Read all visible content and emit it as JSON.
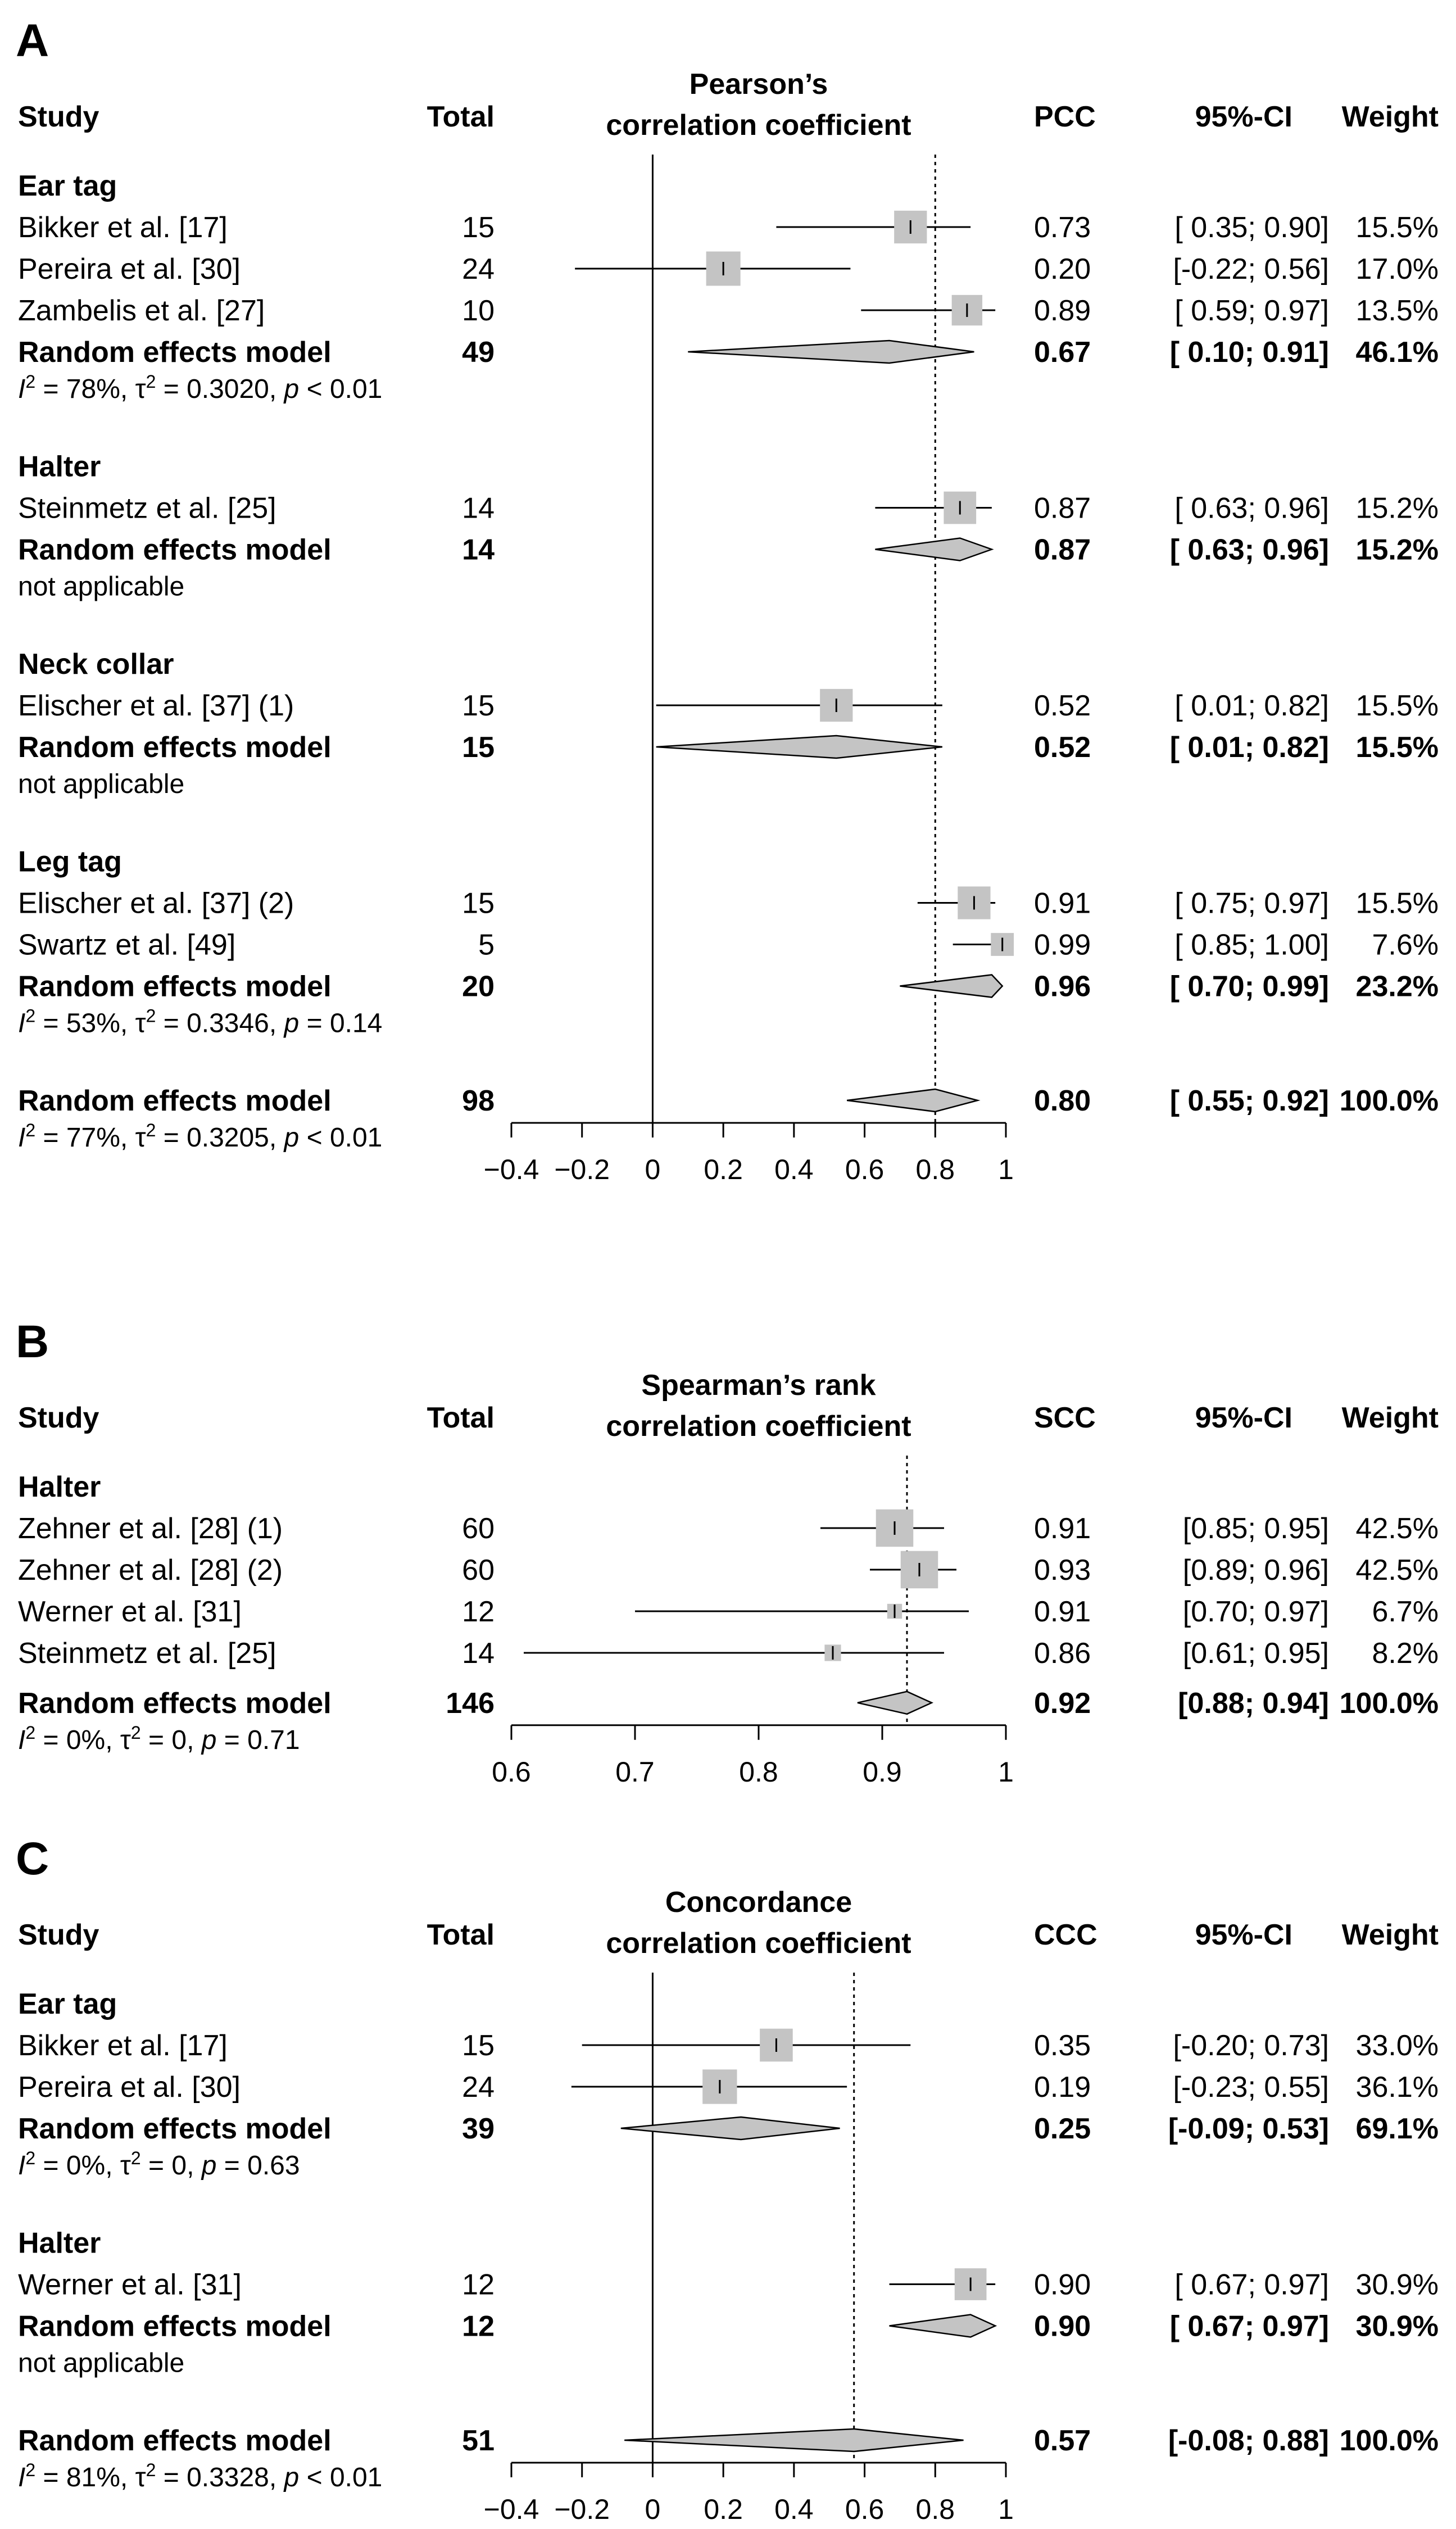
{
  "figure": {
    "panels": [
      {
        "letter": "A",
        "header": {
          "study": "Study",
          "total": "Total",
          "plot_title_1": "Pearson’s",
          "plot_title_2": "correlation coefficient",
          "est": "PCC",
          "ci": "95%-CI",
          "weight": "Weight"
        },
        "axis": {
          "min": -0.4,
          "max": 1,
          "ticks": [
            -0.4,
            -0.2,
            0,
            0.2,
            0.4,
            0.6,
            0.8,
            1
          ],
          "tick_labels": [
            "−0.4",
            "−0.2",
            "0",
            "0.2",
            "0.4",
            "0.6",
            "0.8",
            "1"
          ],
          "reference_line": 0,
          "overall_line": 0.8
        },
        "groups": [
          {
            "name": "Ear tag",
            "studies": [
              {
                "name": "Bikker et al. [17]",
                "total": "15",
                "est": 0.73,
                "lo": 0.35,
                "hi": 0.9,
                "est_txt": "0.73",
                "ci_txt": "[ 0.35; 0.90]",
                "w": 15.5,
                "w_txt": "15.5%"
              },
              {
                "name": "Pereira et al. [30]",
                "total": "24",
                "est": 0.2,
                "lo": -0.22,
                "hi": 0.56,
                "est_txt": "0.20",
                "ci_txt": "[-0.22; 0.56]",
                "w": 17.0,
                "w_txt": "17.0%"
              },
              {
                "name": "Zambelis et al. [27]",
                "total": "10",
                "est": 0.89,
                "lo": 0.59,
                "hi": 0.97,
                "est_txt": "0.89",
                "ci_txt": "[ 0.59; 0.97]",
                "w": 13.5,
                "w_txt": "13.5%"
              }
            ],
            "summary": {
              "label": "Random effects model",
              "total": "49",
              "est": 0.67,
              "lo": 0.1,
              "hi": 0.91,
              "est_txt": "0.67",
              "ci_txt": "[ 0.10; 0.91]",
              "w_txt": "46.1%"
            },
            "het": {
              "i2": "78%",
              "tau2": "0.3020",
              "p": "< 0.01",
              "na": ""
            }
          },
          {
            "name": "Halter",
            "studies": [
              {
                "name": "Steinmetz et al. [25]",
                "total": "14",
                "est": 0.87,
                "lo": 0.63,
                "hi": 0.96,
                "est_txt": "0.87",
                "ci_txt": "[ 0.63; 0.96]",
                "w": 15.2,
                "w_txt": "15.2%"
              }
            ],
            "summary": {
              "label": "Random effects model",
              "total": "14",
              "est": 0.87,
              "lo": 0.63,
              "hi": 0.96,
              "est_txt": "0.87",
              "ci_txt": "[ 0.63; 0.96]",
              "w_txt": "15.2%"
            },
            "het": {
              "i2": "",
              "tau2": "",
              "p": "",
              "na": "not applicable"
            }
          },
          {
            "name": "Neck collar",
            "studies": [
              {
                "name": "Elischer et al. [37] (1)",
                "total": "15",
                "est": 0.52,
                "lo": 0.01,
                "hi": 0.82,
                "est_txt": "0.52",
                "ci_txt": "[ 0.01; 0.82]",
                "w": 15.5,
                "w_txt": "15.5%"
              }
            ],
            "summary": {
              "label": "Random effects model",
              "total": "15",
              "est": 0.52,
              "lo": 0.01,
              "hi": 0.82,
              "est_txt": "0.52",
              "ci_txt": "[ 0.01; 0.82]",
              "w_txt": "15.5%"
            },
            "het": {
              "i2": "",
              "tau2": "",
              "p": "",
              "na": "not applicable"
            }
          },
          {
            "name": "Leg tag",
            "studies": [
              {
                "name": "Elischer et al. [37] (2)",
                "total": "15",
                "est": 0.91,
                "lo": 0.75,
                "hi": 0.97,
                "est_txt": "0.91",
                "ci_txt": "[ 0.75; 0.97]",
                "w": 15.5,
                "w_txt": "15.5%"
              },
              {
                "name": "Swartz et al. [49]",
                "total": "5",
                "est": 0.99,
                "lo": 0.85,
                "hi": 1.0,
                "est_txt": "0.99",
                "ci_txt": "[ 0.85; 1.00]",
                "w": 7.6,
                "w_txt": "7.6%"
              }
            ],
            "summary": {
              "label": "Random effects model",
              "total": "20",
              "est": 0.96,
              "lo": 0.7,
              "hi": 0.99,
              "est_txt": "0.96",
              "ci_txt": "[ 0.70; 0.99]",
              "w_txt": "23.2%"
            },
            "het": {
              "i2": "53%",
              "tau2": "0.3346",
              "p": "= 0.14",
              "na": ""
            }
          }
        ],
        "overall": {
          "label": "Random effects model",
          "total": "98",
          "est": 0.8,
          "lo": 0.55,
          "hi": 0.92,
          "est_txt": "0.80",
          "ci_txt": "[ 0.55; 0.92]",
          "w_txt": "100.0%"
        },
        "overall_het": {
          "i2": "77%",
          "tau2": "0.3205",
          "p": "< 0.01",
          "na": ""
        }
      },
      {
        "letter": "B",
        "header": {
          "study": "Study",
          "total": "Total",
          "plot_title_1": "Spearman’s rank",
          "plot_title_2": "correlation coefficient",
          "est": "SCC",
          "ci": "95%-CI",
          "weight": "Weight"
        },
        "axis": {
          "min": 0.6,
          "max": 1,
          "ticks": [
            0.6,
            0.7,
            0.8,
            0.9,
            1
          ],
          "tick_labels": [
            "0.6",
            "0.7",
            "0.8",
            "0.9",
            "1"
          ],
          "reference_line": null,
          "overall_line": 0.92
        },
        "groups": [
          {
            "name": "Halter",
            "studies": [
              {
                "name": "Zehner et al. [28] (1)",
                "total": "60",
                "est": 0.91,
                "lo": 0.85,
                "hi": 0.95,
                "est_txt": "0.91",
                "ci_txt": "[0.85; 0.95]",
                "w": 42.5,
                "w_txt": "42.5%"
              },
              {
                "name": "Zehner et al. [28] (2)",
                "total": "60",
                "est": 0.93,
                "lo": 0.89,
                "hi": 0.96,
                "est_txt": "0.93",
                "ci_txt": "[0.89; 0.96]",
                "w": 42.5,
                "w_txt": "42.5%"
              },
              {
                "name": "Werner et al. [31]",
                "total": "12",
                "est": 0.91,
                "lo": 0.7,
                "hi": 0.97,
                "est_txt": "0.91",
                "ci_txt": "[0.70; 0.97]",
                "w": 6.7,
                "w_txt": "6.7%"
              },
              {
                "name": "Steinmetz et al. [25]",
                "total": "14",
                "est": 0.86,
                "lo": 0.61,
                "hi": 0.95,
                "est_txt": "0.86",
                "ci_txt": "[0.61; 0.95]",
                "w": 8.2,
                "w_txt": "8.2%"
              }
            ],
            "summary": null,
            "het": null
          }
        ],
        "overall": {
          "label": "Random effects model",
          "total": "146",
          "est": 0.92,
          "lo": 0.88,
          "hi": 0.94,
          "est_txt": "0.92",
          "ci_txt": "[0.88; 0.94]",
          "w_txt": "100.0%"
        },
        "overall_het": {
          "i2": "0%",
          "tau2": "0",
          "p": "= 0.71",
          "na": ""
        }
      },
      {
        "letter": "C",
        "header": {
          "study": "Study",
          "total": "Total",
          "plot_title_1": "Concordance",
          "plot_title_2": "correlation coefficient",
          "est": "CCC",
          "ci": "95%-CI",
          "weight": "Weight"
        },
        "axis": {
          "min": -0.4,
          "max": 1,
          "ticks": [
            -0.4,
            -0.2,
            0,
            0.2,
            0.4,
            0.6,
            0.8,
            1
          ],
          "tick_labels": [
            "−0.4",
            "−0.2",
            "0",
            "0.2",
            "0.4",
            "0.6",
            "0.8",
            "1"
          ],
          "reference_line": 0,
          "overall_line": 0.57
        },
        "groups": [
          {
            "name": "Ear tag",
            "studies": [
              {
                "name": "Bikker et al. [17]",
                "total": "15",
                "est": 0.35,
                "lo": -0.2,
                "hi": 0.73,
                "est_txt": "0.35",
                "ci_txt": "[-0.20; 0.73]",
                "w": 33.0,
                "w_txt": "33.0%"
              },
              {
                "name": "Pereira et al. [30]",
                "total": "24",
                "est": 0.19,
                "lo": -0.23,
                "hi": 0.55,
                "est_txt": "0.19",
                "ci_txt": "[-0.23; 0.55]",
                "w": 36.1,
                "w_txt": "36.1%"
              }
            ],
            "summary": {
              "label": "Random effects model",
              "total": "39",
              "est": 0.25,
              "lo": -0.09,
              "hi": 0.53,
              "est_txt": "0.25",
              "ci_txt": "[-0.09; 0.53]",
              "w_txt": "69.1%"
            },
            "het": {
              "i2": "0%",
              "tau2": "0",
              "p": "= 0.63",
              "na": ""
            }
          },
          {
            "name": "Halter",
            "studies": [
              {
                "name": "Werner et al. [31]",
                "total": "12",
                "est": 0.9,
                "lo": 0.67,
                "hi": 0.97,
                "est_txt": "0.90",
                "ci_txt": "[ 0.67; 0.97]",
                "w": 30.9,
                "w_txt": "30.9%"
              }
            ],
            "summary": {
              "label": "Random effects model",
              "total": "12",
              "est": 0.9,
              "lo": 0.67,
              "hi": 0.97,
              "est_txt": "0.90",
              "ci_txt": "[ 0.67; 0.97]",
              "w_txt": "30.9%"
            },
            "het": {
              "i2": "",
              "tau2": "",
              "p": "",
              "na": "not applicable"
            }
          }
        ],
        "overall": {
          "label": "Random effects model",
          "total": "51",
          "est": 0.57,
          "lo": -0.08,
          "hi": 0.88,
          "est_txt": "0.57",
          "ci_txt": "[-0.08; 0.88]",
          "w_txt": "100.0%"
        },
        "overall_het": {
          "i2": "81%",
          "tau2": "0.3328",
          "p": "< 0.01",
          "na": ""
        }
      }
    ]
  },
  "chart_data": [
    {
      "type": "forest",
      "title": "A — Pearson’s correlation coefficient (PCC)",
      "xlim": [
        -0.4,
        1
      ],
      "series": [
        {
          "group": "Ear tag",
          "study": "Bikker et al. [17]",
          "n": 15,
          "est": 0.73,
          "ci": [
            0.35,
            0.9
          ],
          "weight_pct": 15.5
        },
        {
          "group": "Ear tag",
          "study": "Pereira et al. [30]",
          "n": 24,
          "est": 0.2,
          "ci": [
            -0.22,
            0.56
          ],
          "weight_pct": 17.0
        },
        {
          "group": "Ear tag",
          "study": "Zambelis et al. [27]",
          "n": 10,
          "est": 0.89,
          "ci": [
            0.59,
            0.97
          ],
          "weight_pct": 13.5
        },
        {
          "group": "Ear tag",
          "study": "Random effects model",
          "n": 49,
          "est": 0.67,
          "ci": [
            0.1,
            0.91
          ],
          "weight_pct": 46.1
        },
        {
          "group": "Halter",
          "study": "Steinmetz et al. [25]",
          "n": 14,
          "est": 0.87,
          "ci": [
            0.63,
            0.96
          ],
          "weight_pct": 15.2
        },
        {
          "group": "Neck collar",
          "study": "Elischer et al. [37] (1)",
          "n": 15,
          "est": 0.52,
          "ci": [
            0.01,
            0.82
          ],
          "weight_pct": 15.5
        },
        {
          "group": "Leg tag",
          "study": "Elischer et al. [37] (2)",
          "n": 15,
          "est": 0.91,
          "ci": [
            0.75,
            0.97
          ],
          "weight_pct": 15.5
        },
        {
          "group": "Leg tag",
          "study": "Swartz et al. [49]",
          "n": 5,
          "est": 0.99,
          "ci": [
            0.85,
            1.0
          ],
          "weight_pct": 7.6
        },
        {
          "group": "Leg tag",
          "study": "Random effects model",
          "n": 20,
          "est": 0.96,
          "ci": [
            0.7,
            0.99
          ],
          "weight_pct": 23.2
        },
        {
          "group": "Overall",
          "study": "Random effects model",
          "n": 98,
          "est": 0.8,
          "ci": [
            0.55,
            0.92
          ],
          "weight_pct": 100.0
        }
      ]
    },
    {
      "type": "forest",
      "title": "B — Spearman’s rank correlation coefficient (SCC)",
      "xlim": [
        0.6,
        1
      ],
      "series": [
        {
          "group": "Halter",
          "study": "Zehner et al. [28] (1)",
          "n": 60,
          "est": 0.91,
          "ci": [
            0.85,
            0.95
          ],
          "weight_pct": 42.5
        },
        {
          "group": "Halter",
          "study": "Zehner et al. [28] (2)",
          "n": 60,
          "est": 0.93,
          "ci": [
            0.89,
            0.96
          ],
          "weight_pct": 42.5
        },
        {
          "group": "Halter",
          "study": "Werner et al. [31]",
          "n": 12,
          "est": 0.91,
          "ci": [
            0.7,
            0.97
          ],
          "weight_pct": 6.7
        },
        {
          "group": "Halter",
          "study": "Steinmetz et al. [25]",
          "n": 14,
          "est": 0.86,
          "ci": [
            0.61,
            0.95
          ],
          "weight_pct": 8.2
        },
        {
          "group": "Overall",
          "study": "Random effects model",
          "n": 146,
          "est": 0.92,
          "ci": [
            0.88,
            0.94
          ],
          "weight_pct": 100.0
        }
      ]
    },
    {
      "type": "forest",
      "title": "C — Concordance correlation coefficient (CCC)",
      "xlim": [
        -0.4,
        1
      ],
      "series": [
        {
          "group": "Ear tag",
          "study": "Bikker et al. [17]",
          "n": 15,
          "est": 0.35,
          "ci": [
            -0.2,
            0.73
          ],
          "weight_pct": 33.0
        },
        {
          "group": "Ear tag",
          "study": "Pereira et al. [30]",
          "n": 24,
          "est": 0.19,
          "ci": [
            -0.23,
            0.55
          ],
          "weight_pct": 36.1
        },
        {
          "group": "Ear tag",
          "study": "Random effects model",
          "n": 39,
          "est": 0.25,
          "ci": [
            -0.09,
            0.53
          ],
          "weight_pct": 69.1
        },
        {
          "group": "Halter",
          "study": "Werner et al. [31]",
          "n": 12,
          "est": 0.9,
          "ci": [
            0.67,
            0.97
          ],
          "weight_pct": 30.9
        },
        {
          "group": "Overall",
          "study": "Random effects model",
          "n": 51,
          "est": 0.57,
          "ci": [
            -0.08,
            0.88
          ],
          "weight_pct": 100.0
        }
      ]
    }
  ]
}
